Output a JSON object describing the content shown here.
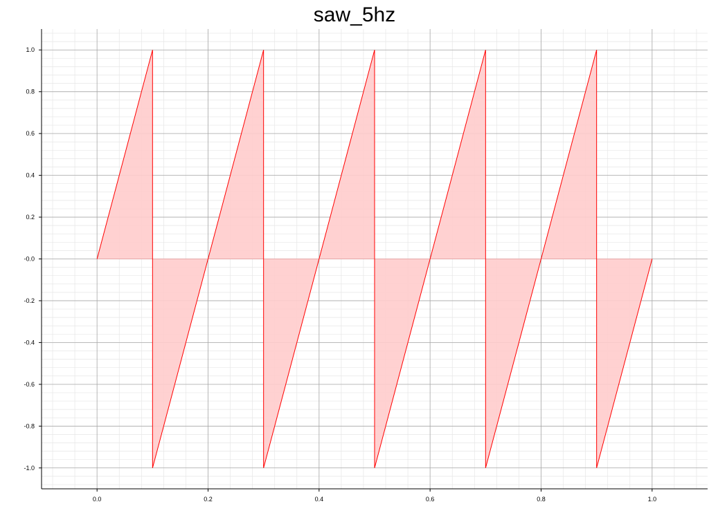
{
  "chart_data": {
    "type": "area",
    "title": "saw_5hz",
    "xlabel": "",
    "ylabel": "",
    "xlim": [
      -0.1,
      1.1
    ],
    "ylim": [
      -1.1,
      1.1
    ],
    "x_ticks": [
      "0.0",
      "0.2",
      "0.4",
      "0.6",
      "0.8",
      "1.0"
    ],
    "x_tick_values": [
      0.0,
      0.2,
      0.4,
      0.6,
      0.8,
      1.0
    ],
    "y_ticks": [
      "1.0",
      "0.8",
      "0.6",
      "0.4",
      "0.2",
      "-0.0",
      "-0.2",
      "-0.4",
      "-0.6",
      "-0.8",
      "-1.0"
    ],
    "y_tick_values": [
      1.0,
      0.8,
      0.6,
      0.4,
      0.2,
      0.0,
      -0.2,
      -0.4,
      -0.6,
      -0.8,
      -1.0
    ],
    "grid": true,
    "series": [
      {
        "x": [
          0.0,
          0.1,
          0.1,
          0.3,
          0.3,
          0.5,
          0.5,
          0.7,
          0.7,
          0.9,
          0.9,
          1.0
        ],
        "y": [
          0.0,
          1.0,
          -1.0,
          1.0,
          -1.0,
          1.0,
          -1.0,
          1.0,
          -1.0,
          1.0,
          -1.0,
          0.0
        ],
        "color": "#ff0000",
        "fill_color": "#ffcccc"
      }
    ]
  }
}
